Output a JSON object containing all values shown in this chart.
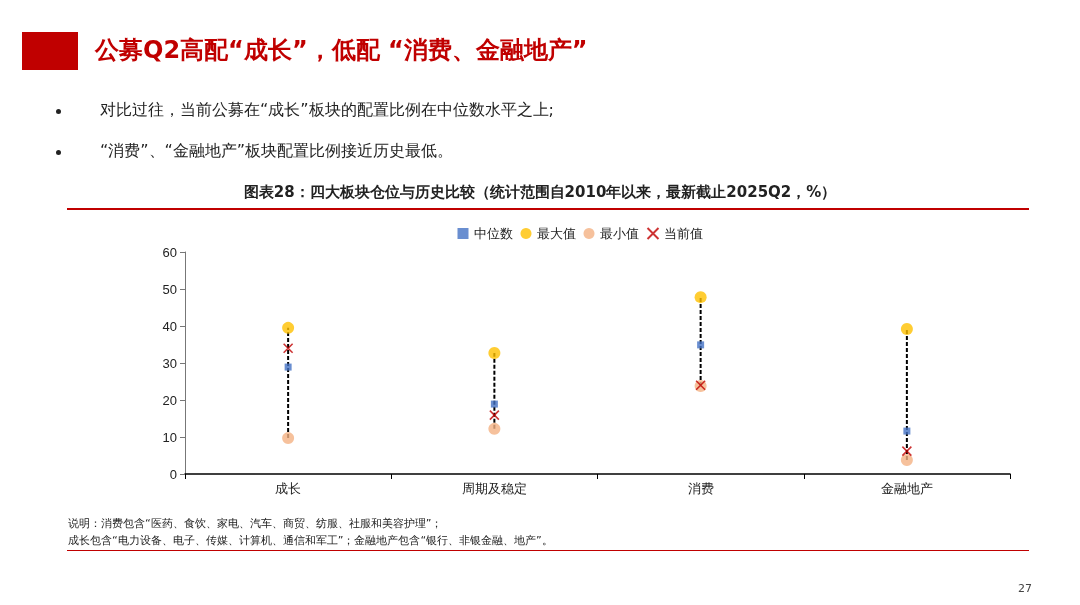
{
  "chart_data": {
    "type": "scatter",
    "title": "公募Q2高配“成长”，低配 “消费、金融地产”",
    "subtitle": "图表28：四大板块仓位与历史比较（统计范围自2010年以来，最新截止2025Q2，%）",
    "categories": [
      "成长",
      "周期及稳定",
      "消费",
      "金融地产"
    ],
    "series": [
      {
        "name": "中位数",
        "color": "#4472c4",
        "marker": "square",
        "values": [
          28.9,
          18.9,
          34.9,
          11.6
        ]
      },
      {
        "name": "最大值",
        "color": "#ffc000",
        "marker": "circle",
        "values": [
          39.5,
          32.7,
          47.8,
          39.2
        ]
      },
      {
        "name": "最小值",
        "color": "#f4b183",
        "marker": "circle",
        "values": [
          9.7,
          12.2,
          23.8,
          3.8
        ]
      },
      {
        "name": "当前值",
        "color": "#c00000",
        "marker": "cross",
        "values": [
          34,
          15.9,
          24,
          6.2
        ]
      }
    ],
    "ylim": [
      0,
      60
    ],
    "yticks": [
      0,
      10,
      20,
      30,
      40,
      50,
      60
    ],
    "grid": false,
    "legend": "top",
    "annotations": [
      "对比过往，当前公募在“成长”板块的配置比例在中位数水平之上;",
      "“消费”、“金融地产”板块配置比例接近历史最低。",
      "说明：消费包含“医药、食饮、家电、汽车、商贸、纺服、社服和美容护理”；",
      "成长包含“电力设备、电子、传媒、计算机、通信和军工”；金融地产包含“银行、非银金融、地产”。",
      "27"
    ]
  }
}
